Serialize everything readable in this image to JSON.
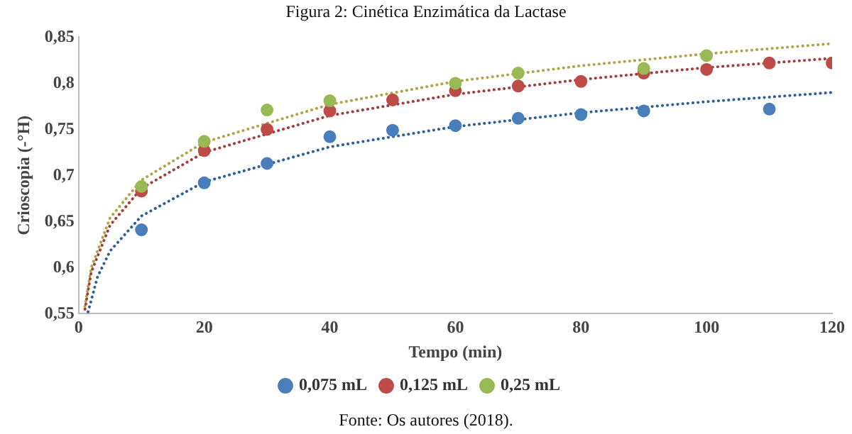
{
  "chart_data": {
    "type": "scatter",
    "title": "Figura 2: Cinética Enzimática da Lactase",
    "xlabel": "Tempo (min)",
    "ylabel": "Crioscopia (-°H)",
    "annotations": [
      "Fonte: Os autores (2018)."
    ],
    "xlim": [
      0,
      120
    ],
    "xticks": [
      0,
      20,
      40,
      60,
      80,
      100,
      120
    ],
    "ylim": [
      0.55,
      0.85
    ],
    "yticks": [
      {
        "value": 0.55,
        "label": "0,55"
      },
      {
        "value": 0.6,
        "label": "0,6"
      },
      {
        "value": 0.65,
        "label": "0,65"
      },
      {
        "value": 0.7,
        "label": "0,7"
      },
      {
        "value": 0.75,
        "label": "0,75"
      },
      {
        "value": 0.8,
        "label": "0,8"
      },
      {
        "value": 0.85,
        "label": "0,85"
      }
    ],
    "grid": false,
    "legend": "bottom",
    "marker": "circle",
    "series": [
      {
        "name": "0,075 mL",
        "color": "#4a7ebb",
        "x": [
          10,
          20,
          30,
          40,
          50,
          60,
          70,
          80,
          90,
          110
        ],
        "values": [
          0.641,
          0.692,
          0.713,
          0.742,
          0.749,
          0.754,
          0.762,
          0.766,
          0.77,
          0.772
        ]
      },
      {
        "name": "0,125 mL",
        "color": "#be4b48",
        "x": [
          10,
          20,
          30,
          40,
          50,
          60,
          70,
          80,
          90,
          100,
          110,
          120
        ],
        "values": [
          0.683,
          0.727,
          0.75,
          0.77,
          0.782,
          0.792,
          0.797,
          0.802,
          0.811,
          0.815,
          0.822,
          0.822
        ]
      },
      {
        "name": "0,25 mL",
        "color": "#98b954",
        "x": [
          10,
          20,
          30,
          40,
          60,
          70,
          90,
          100
        ],
        "values": [
          0.688,
          0.737,
          0.771,
          0.781,
          0.8,
          0.811,
          0.816,
          0.83
        ]
      },
      {
        "type": "line",
        "color": "#2f5f98",
        "line_style": "dotted",
        "marker": "none",
        "x": [
          1.5,
          3,
          5,
          10,
          20,
          40,
          60,
          80,
          100,
          120
        ],
        "values": [
          0.552,
          0.59,
          0.618,
          0.656,
          0.693,
          0.731,
          0.753,
          0.768,
          0.78,
          0.79
        ]
      },
      {
        "type": "line",
        "color": "#a33c3a",
        "line_style": "dotted",
        "marker": "none",
        "x": [
          1,
          2,
          5,
          10,
          20,
          40,
          60,
          80,
          100,
          120
        ],
        "values": [
          0.555,
          0.595,
          0.646,
          0.686,
          0.725,
          0.765,
          0.788,
          0.804,
          0.817,
          0.827
        ]
      },
      {
        "type": "line",
        "color": "#b0a548",
        "line_style": "dotted",
        "marker": "none",
        "x": [
          1,
          2,
          5,
          10,
          20,
          40,
          60,
          80,
          100,
          120
        ],
        "values": [
          0.558,
          0.6,
          0.654,
          0.695,
          0.736,
          0.777,
          0.802,
          0.819,
          0.832,
          0.843
        ]
      }
    ]
  }
}
